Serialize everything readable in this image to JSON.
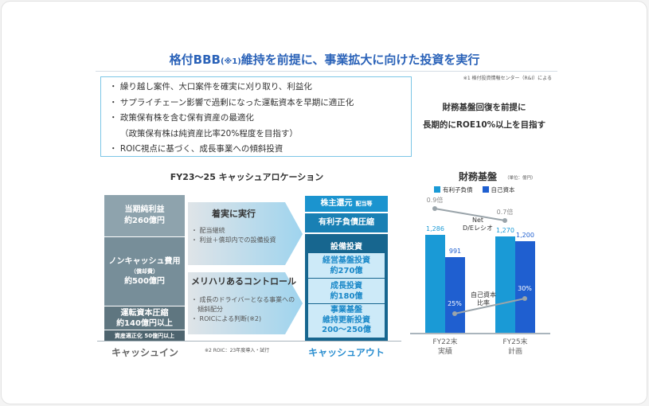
{
  "title": {
    "main_a": "格付BBB",
    "main_note": "(※1)",
    "main_b": "維持を前提に、事業拡大に向けた投資を実行"
  },
  "note1": "※1 格付投資情報センター（R&I）による",
  "bullets": [
    "・ 繰り越し案件、大口案件を確実に刈り取り、利益化",
    "・ サプライチェーン影響で過剰になった運転資本を早期に適正化",
    "・ 政策保有株を含む保有資産の最適化",
    "（政策保有株は純資産比率20%程度を目指す）",
    "・ ROIC視点に基づく、成長事業への傾斜投資"
  ],
  "goal": {
    "line1": "財務基盤回復を前提に",
    "line2": "長期的にROE10%以上を目指す"
  },
  "cash_allocation": {
    "title": "FY23～25 キャッシュアロケーション",
    "cash_in": {
      "label": "キャッシュイン",
      "blocks": [
        {
          "name": "当期純利益",
          "value": "約260億円",
          "color": "#8ea3ad"
        },
        {
          "name": "ノンキャッシュ費用",
          "sub": "（償却費）",
          "value": "約500億円",
          "color": "#778e99"
        },
        {
          "name": "運転資本圧縮",
          "value": "約140億円以上",
          "color": "#5f7680"
        },
        {
          "name": "資産適正化 50億円以上",
          "color": "#4e646e"
        }
      ]
    },
    "arrows": [
      {
        "heading": "着実に実行",
        "items": [
          "・ 配当継続",
          "・ 利益＋償却内での設備投資"
        ]
      },
      {
        "heading": "メリハリあるコントロール",
        "items": [
          "・ 成長のドライバーとなる事業への",
          "　傾斜配分",
          "・ ROICによる判断(※2)"
        ]
      }
    ],
    "note2": "※2 ROIC：23年度導入・試行",
    "cash_out": {
      "label": "キャッシュアウト",
      "shareholder": "株主還元",
      "shareholder_sub": "配当等",
      "debt": "有利子負債圧縮",
      "capex": "設備投資",
      "capex_items": [
        {
          "name": "経営基盤投資",
          "value": "約270億"
        },
        {
          "name": "成長投資",
          "value": "約180億"
        },
        {
          "name": "事業基盤",
          "name2": "維持更新投資",
          "value": "200～250億"
        }
      ]
    }
  },
  "chart_data": {
    "type": "bar",
    "title": "財務基盤",
    "unit": "（単位：億円）",
    "categories": [
      "FY22末|実績",
      "FY25末|計画"
    ],
    "category_lines": [
      [
        "FY22末",
        "実績"
      ],
      [
        "FY25末",
        "計画"
      ]
    ],
    "series": [
      {
        "name": "有利子負債",
        "values": [
          1286,
          1270
        ],
        "labels": [
          "1,286",
          "1,270"
        ],
        "color": "#1a9ad6"
      },
      {
        "name": "自己資本",
        "values": [
          991,
          1200
        ],
        "labels": [
          "991",
          "1,200"
        ],
        "color": "#1f5fd0"
      }
    ],
    "lines": [
      {
        "name": "Net D/Eレシオ",
        "name_lines": [
          "Net",
          "D/Eレシオ"
        ],
        "values": [
          0.9,
          0.7
        ],
        "labels": [
          "0.9倍",
          "0.7倍"
        ],
        "color": "#9aa4aa"
      },
      {
        "name": "自己資本比率",
        "name_lines": [
          "自己資本",
          "比率"
        ],
        "values": [
          25,
          30
        ],
        "labels": [
          "25%",
          "30%"
        ],
        "color": "#9aa4aa"
      }
    ],
    "ylim": [
      0,
      1300
    ],
    "legend": "top"
  }
}
